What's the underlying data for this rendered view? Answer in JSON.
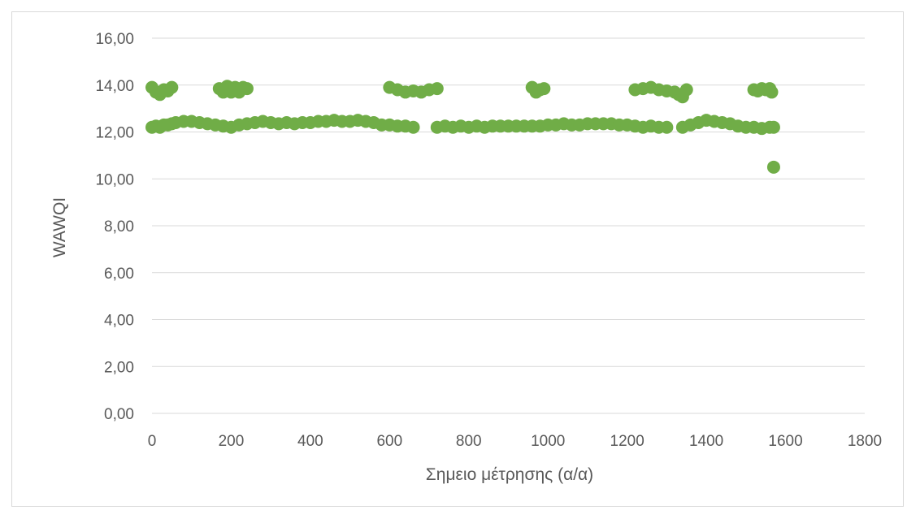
{
  "chart_data": {
    "type": "scatter",
    "title": "",
    "xlabel": "Σημειο μέτρησης (α/α)",
    "ylabel": "WAWQI",
    "xlim": [
      0,
      1800
    ],
    "ylim": [
      0,
      16
    ],
    "x_ticks": [
      "0",
      "200",
      "400",
      "600",
      "800",
      "1000",
      "1200",
      "1400",
      "1600",
      "1800"
    ],
    "y_ticks": [
      "0,00",
      "2,00",
      "4,00",
      "6,00",
      "8,00",
      "10,00",
      "12,00",
      "14,00",
      "16,00"
    ],
    "grid": "horizontal",
    "legend": "none",
    "marker_color": "#70ad47",
    "series": [
      {
        "x": [
          0,
          10,
          20,
          30,
          40,
          50,
          60,
          80,
          100,
          120,
          140,
          160,
          180,
          200,
          220,
          240,
          260,
          280,
          300,
          320,
          340,
          360,
          380,
          400,
          420,
          440,
          460,
          480,
          500,
          520,
          540,
          560,
          580,
          600,
          620,
          640,
          660,
          720,
          740,
          760,
          780,
          800,
          820,
          840,
          860,
          880,
          900,
          920,
          940,
          960,
          980,
          1000,
          1020,
          1040,
          1060,
          1080,
          1100,
          1120,
          1140,
          1160,
          1180,
          1200,
          1220,
          1240,
          1260,
          1280,
          1300,
          1340,
          1360,
          1380,
          1400,
          1420,
          1440,
          1460,
          1480,
          1500,
          1520,
          1540,
          1560,
          1570,
          0,
          10,
          20,
          30,
          40,
          50,
          170,
          180,
          190,
          200,
          210,
          220,
          230,
          240,
          600,
          620,
          640,
          660,
          680,
          700,
          720,
          960,
          970,
          980,
          990,
          1220,
          1240,
          1260,
          1280,
          1300,
          1320,
          1330,
          1340,
          1350,
          1520,
          1530,
          1540,
          1550,
          1560,
          1565,
          1570
        ],
        "y": [
          12.2,
          12.25,
          12.2,
          12.3,
          12.3,
          12.35,
          12.4,
          12.45,
          12.45,
          12.4,
          12.35,
          12.3,
          12.25,
          12.2,
          12.3,
          12.35,
          12.4,
          12.45,
          12.4,
          12.35,
          12.4,
          12.35,
          12.4,
          12.4,
          12.45,
          12.45,
          12.5,
          12.45,
          12.45,
          12.5,
          12.45,
          12.4,
          12.3,
          12.3,
          12.25,
          12.25,
          12.2,
          12.2,
          12.25,
          12.2,
          12.25,
          12.2,
          12.25,
          12.2,
          12.25,
          12.25,
          12.25,
          12.25,
          12.25,
          12.25,
          12.25,
          12.3,
          12.3,
          12.35,
          12.3,
          12.3,
          12.35,
          12.35,
          12.35,
          12.35,
          12.3,
          12.3,
          12.25,
          12.2,
          12.25,
          12.2,
          12.2,
          12.2,
          12.3,
          12.4,
          12.5,
          12.45,
          12.4,
          12.35,
          12.25,
          12.2,
          12.2,
          12.15,
          12.2,
          12.2,
          13.9,
          13.7,
          13.6,
          13.8,
          13.75,
          13.9,
          13.85,
          13.7,
          13.95,
          13.7,
          13.9,
          13.7,
          13.9,
          13.85,
          13.9,
          13.8,
          13.7,
          13.75,
          13.7,
          13.8,
          13.85,
          13.9,
          13.7,
          13.8,
          13.85,
          13.8,
          13.85,
          13.9,
          13.8,
          13.75,
          13.7,
          13.6,
          13.5,
          13.8,
          13.8,
          13.75,
          13.85,
          13.8,
          13.85,
          13.7,
          10.5
        ]
      }
    ]
  }
}
